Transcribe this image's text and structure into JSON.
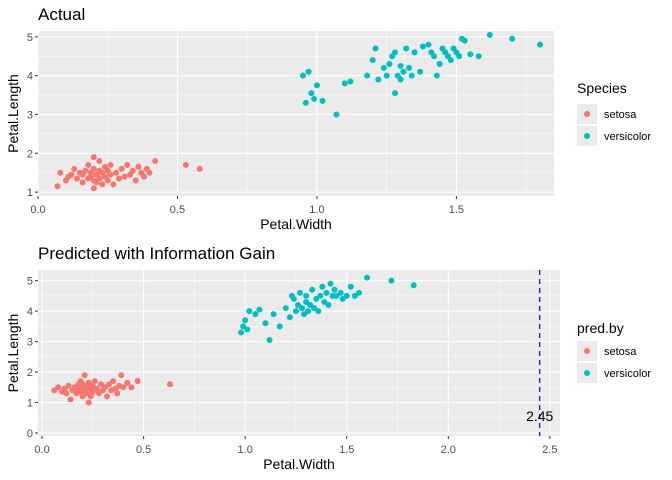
{
  "chart_data": [
    {
      "type": "scatter",
      "title": "Actual",
      "xlabel": "Petal.Width",
      "ylabel": "Petal.Length",
      "xlim": [
        0,
        1.85
      ],
      "ylim": [
        0.9,
        5.15
      ],
      "xticks": [
        0,
        0.5,
        1,
        1.5
      ],
      "xtick_labels": [
        "0.0",
        "0.5",
        "1.0",
        "1.5"
      ],
      "yticks": [
        1,
        2,
        3,
        4,
        5
      ],
      "ytick_labels": [
        "1",
        "2",
        "3",
        "4",
        "5"
      ],
      "grid": true,
      "legend": {
        "title": "Species",
        "placement": "right"
      },
      "series": [
        {
          "name": "setosa",
          "color": "#F8766D",
          "points": [
            [
              0.07,
              1.15
            ],
            [
              0.08,
              1.5
            ],
            [
              0.1,
              1.3
            ],
            [
              0.11,
              1.4
            ],
            [
              0.12,
              1.45
            ],
            [
              0.13,
              1.6
            ],
            [
              0.14,
              1.35
            ],
            [
              0.15,
              1.5
            ],
            [
              0.16,
              1.25
            ],
            [
              0.16,
              1.45
            ],
            [
              0.17,
              1.55
            ],
            [
              0.18,
              1.35
            ],
            [
              0.18,
              1.7
            ],
            [
              0.19,
              1.4
            ],
            [
              0.19,
              1.5
            ],
            [
              0.2,
              1.1
            ],
            [
              0.2,
              1.3
            ],
            [
              0.2,
              1.6
            ],
            [
              0.2,
              1.9
            ],
            [
              0.21,
              1.45
            ],
            [
              0.21,
              1.25
            ],
            [
              0.22,
              1.35
            ],
            [
              0.22,
              1.55
            ],
            [
              0.22,
              1.8
            ],
            [
              0.23,
              1.5
            ],
            [
              0.23,
              1.2
            ],
            [
              0.24,
              1.4
            ],
            [
              0.24,
              1.65
            ],
            [
              0.25,
              1.3
            ],
            [
              0.25,
              1.55
            ],
            [
              0.26,
              1.45
            ],
            [
              0.26,
              1.7
            ],
            [
              0.27,
              1.2
            ],
            [
              0.28,
              1.5
            ],
            [
              0.29,
              1.35
            ],
            [
              0.3,
              1.6
            ],
            [
              0.31,
              1.4
            ],
            [
              0.32,
              1.7
            ],
            [
              0.33,
              1.45
            ],
            [
              0.34,
              1.55
            ],
            [
              0.35,
              1.3
            ],
            [
              0.36,
              1.65
            ],
            [
              0.37,
              1.5
            ],
            [
              0.38,
              1.4
            ],
            [
              0.39,
              1.6
            ],
            [
              0.4,
              1.5
            ],
            [
              0.42,
              1.8
            ],
            [
              0.53,
              1.7
            ],
            [
              0.58,
              1.6
            ]
          ]
        },
        {
          "name": "versicolor",
          "color": "#00BFC4",
          "points": [
            [
              0.95,
              4.0
            ],
            [
              0.96,
              3.3
            ],
            [
              0.97,
              4.1
            ],
            [
              0.98,
              3.55
            ],
            [
              0.99,
              3.4
            ],
            [
              1.0,
              3.75
            ],
            [
              1.02,
              3.35
            ],
            [
              1.07,
              3.0
            ],
            [
              1.1,
              3.8
            ],
            [
              1.12,
              3.85
            ],
            [
              1.18,
              4.0
            ],
            [
              1.2,
              4.4
            ],
            [
              1.21,
              4.7
            ],
            [
              1.22,
              3.9
            ],
            [
              1.24,
              4.2
            ],
            [
              1.25,
              4.0
            ],
            [
              1.26,
              4.3
            ],
            [
              1.27,
              4.5
            ],
            [
              1.28,
              4.6
            ],
            [
              1.28,
              3.55
            ],
            [
              1.29,
              4.0
            ],
            [
              1.3,
              4.25
            ],
            [
              1.3,
              3.9
            ],
            [
              1.31,
              4.1
            ],
            [
              1.32,
              4.7
            ],
            [
              1.33,
              4.2
            ],
            [
              1.34,
              4.0
            ],
            [
              1.35,
              4.6
            ],
            [
              1.37,
              4.1
            ],
            [
              1.38,
              4.75
            ],
            [
              1.4,
              4.8
            ],
            [
              1.41,
              4.6
            ],
            [
              1.42,
              4.5
            ],
            [
              1.43,
              4.0
            ],
            [
              1.44,
              4.3
            ],
            [
              1.45,
              4.7
            ],
            [
              1.46,
              4.6
            ],
            [
              1.47,
              4.5
            ],
            [
              1.48,
              4.4
            ],
            [
              1.49,
              4.7
            ],
            [
              1.5,
              4.6
            ],
            [
              1.51,
              4.5
            ],
            [
              1.52,
              4.95
            ],
            [
              1.53,
              4.9
            ],
            [
              1.55,
              4.55
            ],
            [
              1.58,
              4.5
            ],
            [
              1.62,
              5.05
            ],
            [
              1.7,
              4.95
            ],
            [
              1.8,
              4.8
            ]
          ]
        }
      ]
    },
    {
      "type": "scatter",
      "title": "Predicted with Information Gain",
      "xlabel": "Petal.Width",
      "ylabel": "Petal.Length",
      "xlim": [
        -0.02,
        2.55
      ],
      "ylim": [
        -0.1,
        5.35
      ],
      "xticks": [
        0,
        0.5,
        1,
        1.5,
        2,
        2.5
      ],
      "xtick_labels": [
        "0.0",
        "0.5",
        "1.0",
        "1.5",
        "2.0",
        "2.5"
      ],
      "yticks": [
        0,
        1,
        2,
        3,
        4,
        5
      ],
      "ytick_labels": [
        "0",
        "1",
        "2",
        "3",
        "4",
        "5"
      ],
      "grid": true,
      "legend": {
        "title": "pred.by",
        "placement": "right"
      },
      "vline": {
        "x": 2.45,
        "color": "#0000FF",
        "style": "dashed",
        "label": "2.45",
        "label_y": 0.55
      },
      "series": [
        {
          "name": "setosa",
          "color": "#F8766D",
          "points": [
            [
              0.06,
              1.4
            ],
            [
              0.08,
              1.5
            ],
            [
              0.1,
              1.35
            ],
            [
              0.11,
              1.45
            ],
            [
              0.12,
              1.3
            ],
            [
              0.13,
              1.55
            ],
            [
              0.14,
              1.1
            ],
            [
              0.15,
              1.4
            ],
            [
              0.16,
              1.5
            ],
            [
              0.17,
              1.3
            ],
            [
              0.18,
              1.6
            ],
            [
              0.18,
              1.45
            ],
            [
              0.19,
              1.35
            ],
            [
              0.19,
              1.7
            ],
            [
              0.2,
              1.5
            ],
            [
              0.2,
              1.2
            ],
            [
              0.2,
              1.6
            ],
            [
              0.21,
              1.4
            ],
            [
              0.21,
              1.9
            ],
            [
              0.22,
              1.3
            ],
            [
              0.22,
              1.5
            ],
            [
              0.23,
              1.65
            ],
            [
              0.23,
              1.0
            ],
            [
              0.24,
              1.45
            ],
            [
              0.24,
              1.2
            ],
            [
              0.25,
              1.55
            ],
            [
              0.25,
              1.35
            ],
            [
              0.26,
              1.7
            ],
            [
              0.27,
              1.45
            ],
            [
              0.28,
              1.3
            ],
            [
              0.29,
              1.6
            ],
            [
              0.3,
              1.4
            ],
            [
              0.31,
              1.5
            ],
            [
              0.32,
              1.2
            ],
            [
              0.33,
              1.6
            ],
            [
              0.34,
              1.4
            ],
            [
              0.35,
              1.7
            ],
            [
              0.36,
              1.45
            ],
            [
              0.37,
              1.3
            ],
            [
              0.38,
              1.55
            ],
            [
              0.39,
              1.9
            ],
            [
              0.4,
              1.5
            ],
            [
              0.42,
              1.65
            ],
            [
              0.44,
              1.5
            ],
            [
              0.47,
              1.7
            ],
            [
              0.63,
              1.6
            ]
          ]
        },
        {
          "name": "versicolor",
          "color": "#00BFC4",
          "points": [
            [
              0.98,
              3.3
            ],
            [
              0.99,
              3.5
            ],
            [
              1.0,
              3.7
            ],
            [
              1.01,
              3.4
            ],
            [
              1.02,
              4.0
            ],
            [
              1.05,
              3.9
            ],
            [
              1.07,
              4.05
            ],
            [
              1.1,
              3.6
            ],
            [
              1.12,
              3.05
            ],
            [
              1.14,
              3.9
            ],
            [
              1.17,
              3.5
            ],
            [
              1.2,
              4.1
            ],
            [
              1.22,
              3.8
            ],
            [
              1.23,
              4.5
            ],
            [
              1.24,
              4.4
            ],
            [
              1.25,
              4.0
            ],
            [
              1.26,
              4.2
            ],
            [
              1.27,
              4.6
            ],
            [
              1.28,
              4.1
            ],
            [
              1.29,
              3.9
            ],
            [
              1.3,
              4.3
            ],
            [
              1.3,
              4.5
            ],
            [
              1.31,
              4.0
            ],
            [
              1.32,
              4.2
            ],
            [
              1.33,
              4.7
            ],
            [
              1.34,
              4.1
            ],
            [
              1.35,
              4.4
            ],
            [
              1.36,
              4.0
            ],
            [
              1.37,
              4.5
            ],
            [
              1.38,
              4.8
            ],
            [
              1.39,
              4.3
            ],
            [
              1.4,
              4.6
            ],
            [
              1.41,
              4.2
            ],
            [
              1.42,
              4.9
            ],
            [
              1.43,
              4.5
            ],
            [
              1.44,
              4.7
            ],
            [
              1.45,
              4.5
            ],
            [
              1.47,
              4.6
            ],
            [
              1.48,
              4.4
            ],
            [
              1.5,
              4.5
            ],
            [
              1.52,
              4.8
            ],
            [
              1.54,
              4.5
            ],
            [
              1.56,
              4.6
            ],
            [
              1.6,
              5.1
            ],
            [
              1.72,
              5.0
            ],
            [
              1.83,
              4.85
            ]
          ]
        }
      ]
    }
  ]
}
